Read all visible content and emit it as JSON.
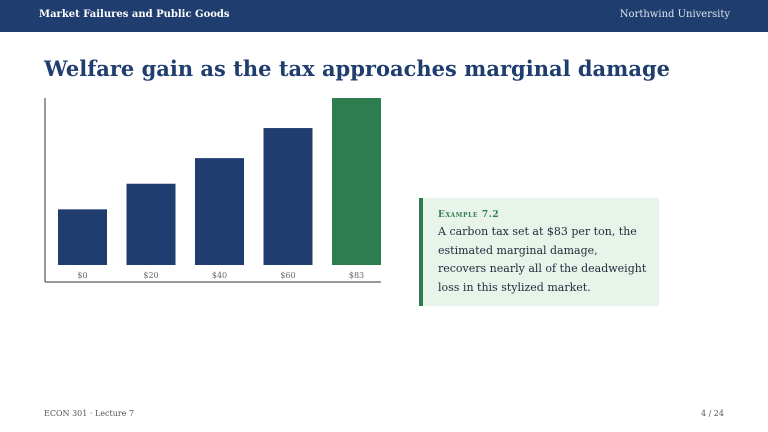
{
  "header": {
    "course_title": "Market Failures and Public Goods",
    "institution": "Northwind University"
  },
  "slide": {
    "title": "Welfare gain as the tax approaches marginal damage"
  },
  "chart_data": {
    "type": "bar",
    "categories": [
      "$0",
      "$20",
      "$40",
      "$60",
      "$83"
    ],
    "values": [
      5,
      7.3,
      9.6,
      12.3,
      15
    ],
    "ylim": [
      0,
      15
    ],
    "highlight_index": 4,
    "grid": false,
    "colors": {
      "bar": "#1f3d6e",
      "highlight": "#2e7d4f",
      "axis": "#333333"
    }
  },
  "callout": {
    "kicker": "Example 7.2",
    "text": "A carbon tax set at $83 per ton, the estimated marginal damage, recovers nearly all of the deadweight loss in this stylized market."
  },
  "footer": {
    "course": "ECON 301 · Lecture 7",
    "page": "4 / 24"
  }
}
